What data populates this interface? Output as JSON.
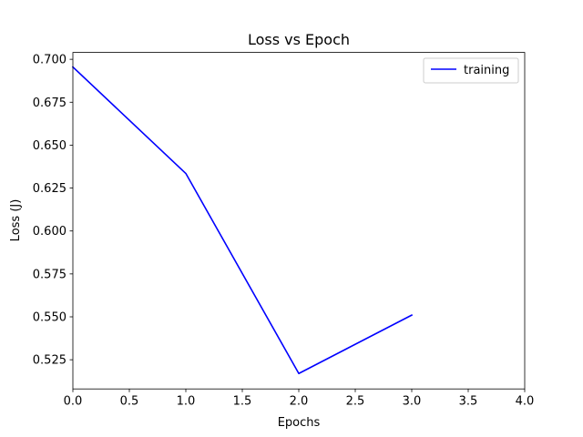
{
  "chart_data": {
    "type": "line",
    "title": "Loss vs Epoch",
    "xlabel": "Epochs",
    "ylabel": "Loss (J)",
    "xlim": [
      0,
      4
    ],
    "ylim": [
      0.508,
      0.704
    ],
    "xticks": [
      0,
      0.5,
      1,
      1.5,
      2,
      2.5,
      3,
      3.5,
      4
    ],
    "xtick_labels": [
      "0.0",
      "0.5",
      "1.0",
      "1.5",
      "2.0",
      "2.5",
      "3.0",
      "3.5",
      "4.0"
    ],
    "yticks": [
      0.525,
      0.55,
      0.575,
      0.6,
      0.625,
      0.65,
      0.675,
      0.7
    ],
    "ytick_labels": [
      "0.525",
      "0.550",
      "0.575",
      "0.600",
      "0.625",
      "0.650",
      "0.675",
      "0.700"
    ],
    "grid": false,
    "legend_position": "top-right",
    "series": [
      {
        "name": "training",
        "color": "#0000ff",
        "x": [
          0,
          1,
          2,
          3
        ],
        "y": [
          0.6955,
          0.6335,
          0.517,
          0.551
        ]
      }
    ]
  }
}
